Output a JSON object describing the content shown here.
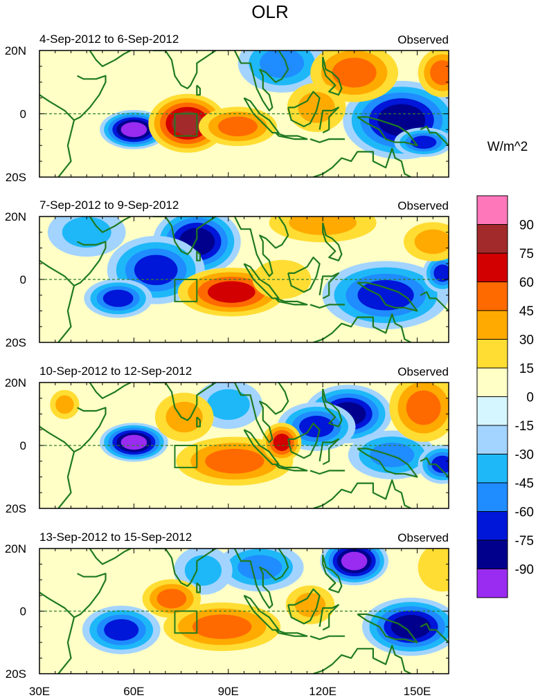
{
  "chart_data": {
    "type": "heatmap",
    "title": "OLR",
    "units": "W/m^2",
    "variant_label": "Observed",
    "x_range": [
      30,
      160
    ],
    "y_range": [
      -20,
      20
    ],
    "x_ticks": [
      {
        "value": 30,
        "label": "30E"
      },
      {
        "value": 60,
        "label": "60E"
      },
      {
        "value": 90,
        "label": "90E"
      },
      {
        "value": 120,
        "label": "120E"
      },
      {
        "value": 150,
        "label": "150E"
      }
    ],
    "y_ticks": [
      {
        "value": 20,
        "label": "20N"
      },
      {
        "value": 0,
        "label": "0"
      },
      {
        "value": -20,
        "label": "20S"
      }
    ],
    "colorbar": {
      "levels": [
        "90",
        "75",
        "60",
        "45",
        "30",
        "15",
        "0",
        "-15",
        "-30",
        "-45",
        "-60",
        "-75",
        "-90"
      ],
      "colors": [
        "#ff77bb",
        "#a32a2a",
        "#d20000",
        "#ff6a00",
        "#ffaa00",
        "#ffdd33",
        "#ffffc6",
        "#d6f6ff",
        "#a3d4ff",
        "#1eb8f8",
        "#1f8cff",
        "#0016d8",
        "#00008d",
        "#9a2bf0"
      ]
    },
    "box_region": {
      "lon": [
        73,
        80
      ],
      "lat": [
        -7,
        0
      ]
    },
    "panels": [
      {
        "label": "4-Sep-2012 to 6-Sep-2012",
        "anomalies": [
          {
            "lon": 60,
            "lat": -5,
            "value": -90,
            "rlon": 7,
            "rlat": 4
          },
          {
            "lon": 145,
            "lat": -2,
            "value": -75,
            "rlon": 12,
            "rlat": 8
          },
          {
            "lon": 152,
            "lat": -9,
            "value": -60,
            "rlon": 6,
            "rlat": 3
          },
          {
            "lon": 107,
            "lat": 16,
            "value": -45,
            "rlon": 9,
            "rlat": 6
          },
          {
            "lon": 77,
            "lat": -3,
            "value": 75,
            "rlon": 8,
            "rlat": 6
          },
          {
            "lon": 93,
            "lat": -4,
            "value": 45,
            "rlon": 8,
            "rlat": 4
          },
          {
            "lon": 130,
            "lat": 13,
            "value": 45,
            "rlon": 9,
            "rlat": 6
          },
          {
            "lon": 158,
            "lat": 13,
            "value": 45,
            "rlon": 5,
            "rlat": 5
          },
          {
            "lon": 118,
            "lat": 2,
            "value": 30,
            "rlon": 6,
            "rlat": 5
          }
        ]
      },
      {
        "label": "7-Sep-2012 to 9-Sep-2012",
        "anomalies": [
          {
            "lon": 80,
            "lat": 12,
            "value": -75,
            "rlon": 9,
            "rlat": 7
          },
          {
            "lon": 67,
            "lat": 3,
            "value": -60,
            "rlon": 10,
            "rlat": 7
          },
          {
            "lon": 55,
            "lat": -6,
            "value": -60,
            "rlon": 7,
            "rlat": 4
          },
          {
            "lon": 140,
            "lat": -5,
            "value": -60,
            "rlon": 13,
            "rlat": 7
          },
          {
            "lon": 158,
            "lat": 2,
            "value": -60,
            "rlon": 4,
            "rlat": 4
          },
          {
            "lon": 45,
            "lat": 15,
            "value": -30,
            "rlon": 8,
            "rlat": 5
          },
          {
            "lon": 91,
            "lat": -4,
            "value": 60,
            "rlon": 11,
            "rlat": 5
          },
          {
            "lon": 120,
            "lat": 18,
            "value": 30,
            "rlon": 11,
            "rlat": 4
          },
          {
            "lon": 155,
            "lat": 12,
            "value": 30,
            "rlon": 6,
            "rlat": 4
          },
          {
            "lon": 107,
            "lat": 0,
            "value": 15,
            "rlon": 6,
            "rlat": 4
          }
        ]
      },
      {
        "label": "10-Sep-2012 to 12-Sep-2012",
        "anomalies": [
          {
            "lon": 60,
            "lat": 1,
            "value": -90,
            "rlon": 7,
            "rlat": 4
          },
          {
            "lon": 128,
            "lat": 10,
            "value": -75,
            "rlon": 9,
            "rlat": 6
          },
          {
            "lon": 118,
            "lat": 6,
            "value": -60,
            "rlon": 8,
            "rlat": 5
          },
          {
            "lon": 142,
            "lat": -3,
            "value": -45,
            "rlon": 9,
            "rlat": 5
          },
          {
            "lon": 158,
            "lat": -6,
            "value": -60,
            "rlon": 5,
            "rlat": 4
          },
          {
            "lon": 90,
            "lat": 13,
            "value": -30,
            "rlon": 7,
            "rlat": 5
          },
          {
            "lon": 92,
            "lat": -5,
            "value": 45,
            "rlon": 12,
            "rlat": 5
          },
          {
            "lon": 76,
            "lat": 9,
            "value": 30,
            "rlon": 6,
            "rlat": 5
          },
          {
            "lon": 107,
            "lat": 1,
            "value": 60,
            "rlon": 4,
            "rlat": 4
          },
          {
            "lon": 152,
            "lat": 12,
            "value": 45,
            "rlon": 7,
            "rlat": 7
          },
          {
            "lon": 38,
            "lat": 13,
            "value": 30,
            "rlon": 3,
            "rlat": 3
          }
        ]
      },
      {
        "label": "13-Sep-2012 to 15-Sep-2012",
        "anomalies": [
          {
            "lon": 130,
            "lat": 16,
            "value": -90,
            "rlon": 7,
            "rlat": 5
          },
          {
            "lon": 148,
            "lat": -5,
            "value": -75,
            "rlon": 10,
            "rlat": 6
          },
          {
            "lon": 56,
            "lat": -6,
            "value": -60,
            "rlon": 8,
            "rlat": 5
          },
          {
            "lon": 100,
            "lat": 14,
            "value": -45,
            "rlon": 9,
            "rlat": 5
          },
          {
            "lon": 82,
            "lat": 13,
            "value": -30,
            "rlon": 6,
            "rlat": 5
          },
          {
            "lon": 88,
            "lat": -5,
            "value": 45,
            "rlon": 12,
            "rlat": 5
          },
          {
            "lon": 72,
            "lat": 4,
            "value": 45,
            "rlon": 6,
            "rlat": 4
          },
          {
            "lon": 116,
            "lat": 2,
            "value": 30,
            "rlon": 5,
            "rlat": 4
          },
          {
            "lon": 158,
            "lat": 14,
            "value": 15,
            "rlon": 5,
            "rlat": 5
          }
        ]
      }
    ]
  }
}
